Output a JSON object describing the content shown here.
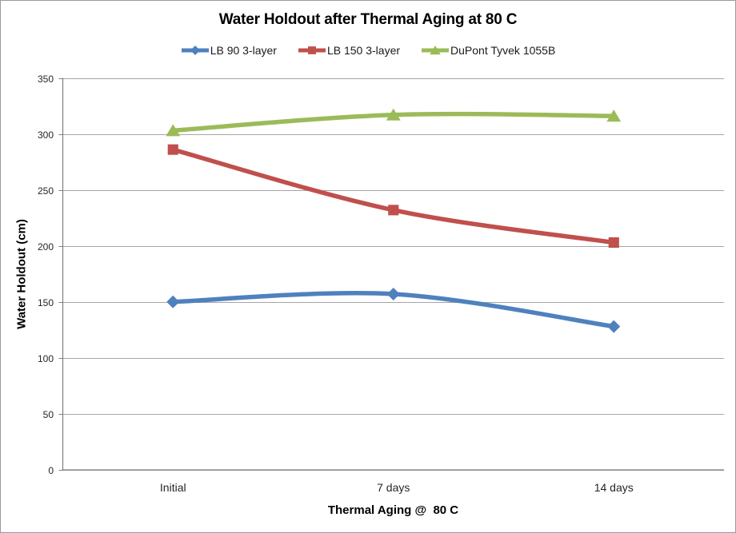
{
  "chart_data": {
    "type": "line",
    "title": "Water Holdout after Thermal Aging at 80 C",
    "xlabel": "Thermal Aging @  80 C",
    "ylabel": "Water Holdout (cm)",
    "categories": [
      "Initial",
      "7 days",
      "14 days"
    ],
    "series": [
      {
        "name": "LB 90 3-layer",
        "marker": "diamond",
        "color": "#4F81BD",
        "values": [
          150,
          157,
          128
        ]
      },
      {
        "name": "LB 150 3-layer",
        "marker": "square",
        "color": "#C0504D",
        "values": [
          286,
          232,
          203
        ]
      },
      {
        "name": "DuPont Tyvek 1055B",
        "marker": "triangle",
        "color": "#9BBB59",
        "values": [
          303,
          317,
          316
        ]
      }
    ],
    "ylim": [
      0,
      350
    ],
    "yticks": [
      0,
      50,
      100,
      150,
      200,
      250,
      300,
      350
    ],
    "grid": true,
    "smooth_lines": true,
    "legend_position": "top"
  },
  "style": {
    "gridline_color": "#A6A6A6",
    "axis_color": "#808080",
    "tick_text_color": "#262626",
    "title_color": "#000000",
    "background": "#FFFFFF",
    "border_color": "#9A9A9A"
  }
}
